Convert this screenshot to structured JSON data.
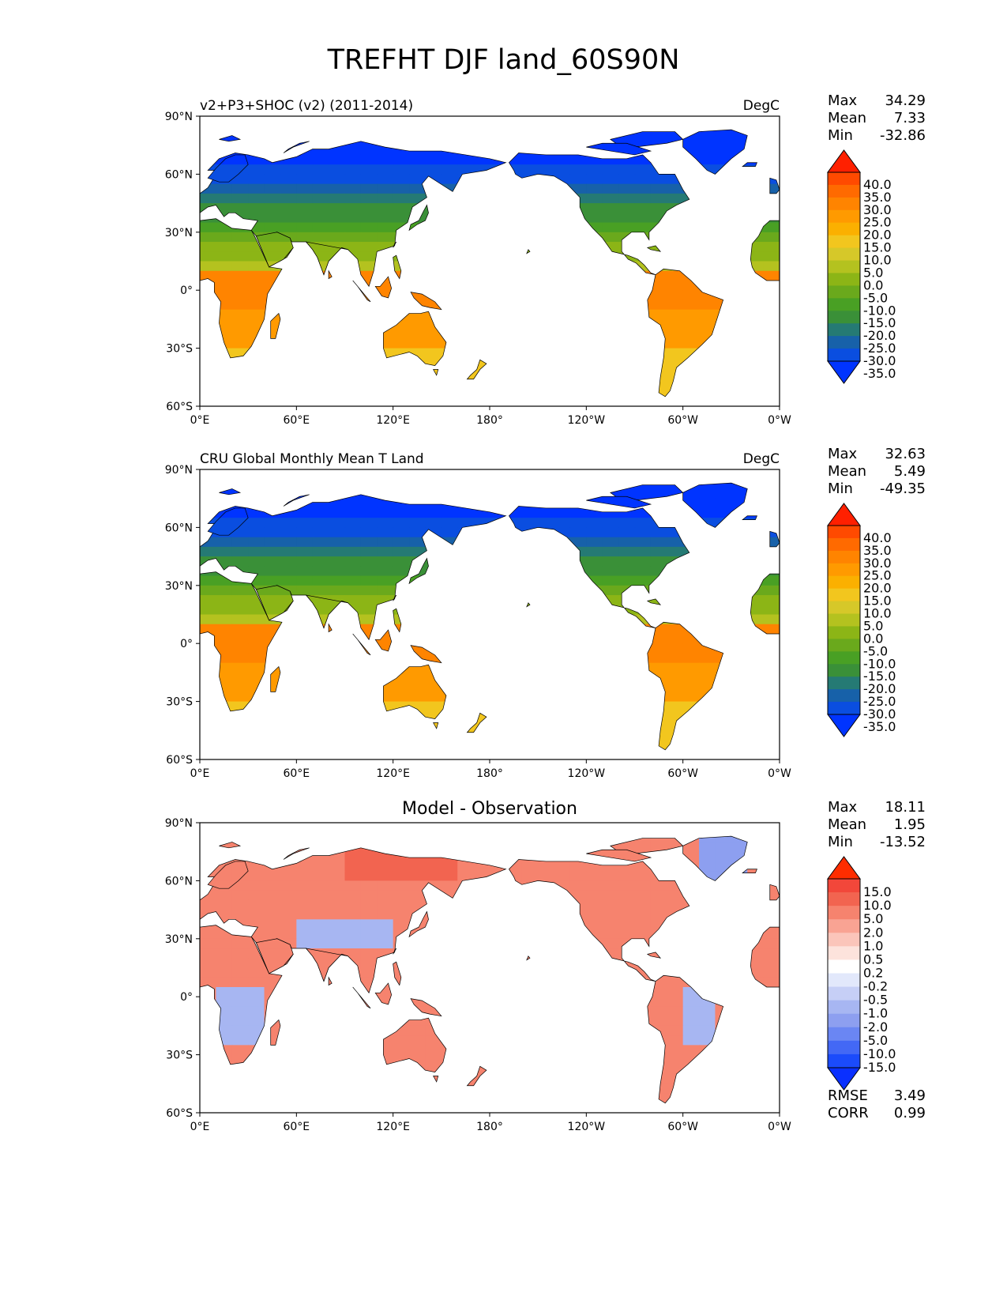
{
  "title": "TREFHT DJF land_60S90N",
  "lat_ticks": [
    "90°N",
    "60°N",
    "30°N",
    "0°",
    "30°S",
    "60°S"
  ],
  "lon_ticks": [
    "0°E",
    "60°E",
    "120°E",
    "180°",
    "120°W",
    "60°W",
    "0°W"
  ],
  "panels": [
    {
      "id": "model",
      "left_title": "v2+P3+SHOC (v2) (2011-2014)",
      "center_title": "",
      "units": "DegC",
      "stats": [
        {
          "label": "Max",
          "value": "34.29"
        },
        {
          "label": "Mean",
          "value": "7.33"
        },
        {
          "label": "Min",
          "value": "-32.86"
        }
      ],
      "colorbar_labels": [
        "40.0",
        "35.0",
        "30.0",
        "25.0",
        "20.0",
        "15.0",
        "10.0",
        "5.0",
        "0.0",
        "-5.0",
        "-10.0",
        "-15.0",
        "-20.0",
        "-25.0",
        "-30.0",
        "-35.0"
      ],
      "colorbar_colors": [
        "#ff2000",
        "#ff4a00",
        "#ff6a00",
        "#ff8400",
        "#ff9a00",
        "#fbb000",
        "#f2c61e",
        "#d6c829",
        "#b4c21f",
        "#8cb516",
        "#6aa91c",
        "#49a024",
        "#3a9038",
        "#257a74",
        "#1761a9",
        "#0a4ee0",
        "#0034ff"
      ],
      "extra_stats": []
    },
    {
      "id": "obs",
      "left_title": "CRU Global Monthly Mean T Land",
      "center_title": "",
      "units": "DegC",
      "stats": [
        {
          "label": "Max",
          "value": "32.63"
        },
        {
          "label": "Mean",
          "value": "5.49"
        },
        {
          "label": "Min",
          "value": "-49.35"
        }
      ],
      "colorbar_labels": [
        "40.0",
        "35.0",
        "30.0",
        "25.0",
        "20.0",
        "15.0",
        "10.0",
        "5.0",
        "0.0",
        "-5.0",
        "-10.0",
        "-15.0",
        "-20.0",
        "-25.0",
        "-30.0",
        "-35.0"
      ],
      "colorbar_colors": [
        "#ff2000",
        "#ff4a00",
        "#ff6a00",
        "#ff8400",
        "#ff9a00",
        "#fbb000",
        "#f2c61e",
        "#d6c829",
        "#b4c21f",
        "#8cb516",
        "#6aa91c",
        "#49a024",
        "#3a9038",
        "#257a74",
        "#1761a9",
        "#0a4ee0",
        "#0034ff"
      ],
      "extra_stats": []
    },
    {
      "id": "diff",
      "left_title": "",
      "center_title": "Model - Observation",
      "units": "",
      "stats": [
        {
          "label": "Max",
          "value": "18.11"
        },
        {
          "label": "Mean",
          "value": "1.95"
        },
        {
          "label": "Min",
          "value": "-13.52"
        }
      ],
      "colorbar_labels": [
        "15.0",
        "10.0",
        "5.0",
        "2.0",
        "1.0",
        "0.5",
        "0.2",
        "-0.2",
        "-0.5",
        "-1.0",
        "-2.0",
        "-5.0",
        "-10.0",
        "-15.0"
      ],
      "colorbar_colors": [
        "#ff2d00",
        "#f2473a",
        "#f26450",
        "#f6836e",
        "#f9a393",
        "#fbc5ba",
        "#fde3dc",
        "#ffffff",
        "#e2e8fb",
        "#c6cff6",
        "#a7b6f2",
        "#8d9ff0",
        "#6a86f3",
        "#4368f5",
        "#1b4bfb",
        "#0a30ff"
      ],
      "extra_stats": [
        {
          "label": "RMSE",
          "value": "3.49"
        },
        {
          "label": "CORR",
          "value": "0.99"
        }
      ]
    }
  ],
  "colors": {
    "ocean": "#ffffff",
    "coast": "#000000"
  }
}
